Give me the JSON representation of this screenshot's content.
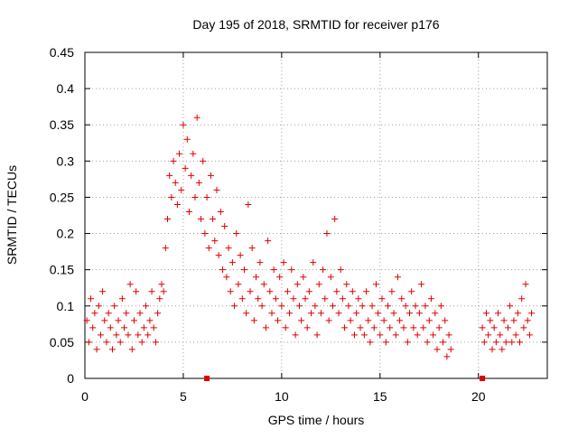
{
  "chart_data": {
    "type": "scatter",
    "title": "Day 195 of 2018, SRMTID for receiver p176",
    "xlabel": "GPS time / hours",
    "ylabel": "SRMTID / TECUs",
    "xlim": [
      0,
      23.5
    ],
    "ylim": [
      0,
      0.45
    ],
    "x_ticks": [
      0,
      5,
      10,
      15,
      20
    ],
    "y_ticks": [
      0,
      0.05,
      0.1,
      0.15,
      0.2,
      0.25,
      0.3,
      0.35,
      0.4,
      0.45
    ],
    "x_tick_labels": [
      "0",
      "5",
      "10",
      "15",
      "20"
    ],
    "y_tick_labels": [
      "0",
      "0.05",
      "0.1",
      "0.15",
      "0.2",
      "0.25",
      "0.3",
      "0.35",
      "0.4",
      "0.45"
    ],
    "grid": true,
    "marker": "plus",
    "color": "#e00000",
    "series": [
      {
        "name": "SRMTID",
        "points": [
          [
            0.1,
            0.08
          ],
          [
            0.2,
            0.05
          ],
          [
            0.3,
            0.11
          ],
          [
            0.4,
            0.07
          ],
          [
            0.5,
            0.09
          ],
          [
            0.6,
            0.04
          ],
          [
            0.7,
            0.1
          ],
          [
            0.8,
            0.06
          ],
          [
            0.9,
            0.12
          ],
          [
            1.0,
            0.08
          ],
          [
            1.1,
            0.05
          ],
          [
            1.2,
            0.09
          ],
          [
            1.3,
            0.07
          ],
          [
            1.4,
            0.04
          ],
          [
            1.5,
            0.1
          ],
          [
            1.6,
            0.06
          ],
          [
            1.7,
            0.08
          ],
          [
            1.8,
            0.05
          ],
          [
            1.9,
            0.11
          ],
          [
            2.0,
            0.07
          ],
          [
            2.1,
            0.09
          ],
          [
            2.2,
            0.06
          ],
          [
            2.3,
            0.13
          ],
          [
            2.4,
            0.04
          ],
          [
            2.5,
            0.08
          ],
          [
            2.6,
            0.12
          ],
          [
            2.7,
            0.06
          ],
          [
            2.8,
            0.09
          ],
          [
            2.9,
            0.05
          ],
          [
            3.0,
            0.07
          ],
          [
            3.1,
            0.1
          ],
          [
            3.2,
            0.06
          ],
          [
            3.3,
            0.08
          ],
          [
            3.4,
            0.12
          ],
          [
            3.5,
            0.07
          ],
          [
            3.6,
            0.05
          ],
          [
            3.7,
            0.09
          ],
          [
            3.8,
            0.11
          ],
          [
            3.9,
            0.13
          ],
          [
            4.0,
            0.12
          ],
          [
            4.1,
            0.18
          ],
          [
            4.2,
            0.22
          ],
          [
            4.3,
            0.28
          ],
          [
            4.4,
            0.25
          ],
          [
            4.5,
            0.3
          ],
          [
            4.6,
            0.27
          ],
          [
            4.7,
            0.24
          ],
          [
            4.8,
            0.31
          ],
          [
            4.9,
            0.26
          ],
          [
            5.0,
            0.35
          ],
          [
            5.1,
            0.29
          ],
          [
            5.2,
            0.33
          ],
          [
            5.3,
            0.23
          ],
          [
            5.4,
            0.28
          ],
          [
            5.5,
            0.31
          ],
          [
            5.6,
            0.25
          ],
          [
            5.7,
            0.36
          ],
          [
            5.8,
            0.27
          ],
          [
            5.9,
            0.22
          ],
          [
            6.0,
            0.3
          ],
          [
            6.1,
            0.2
          ],
          [
            6.2,
            0.25
          ],
          [
            6.3,
            0.18
          ],
          [
            6.4,
            0.28
          ],
          [
            6.5,
            0.22
          ],
          [
            6.6,
            0.19
          ],
          [
            6.7,
            0.26
          ],
          [
            6.8,
            0.17
          ],
          [
            6.9,
            0.23
          ],
          [
            7.0,
            0.15
          ],
          [
            7.1,
            0.21
          ],
          [
            7.2,
            0.14
          ],
          [
            7.3,
            0.18
          ],
          [
            7.4,
            0.12
          ],
          [
            7.5,
            0.16
          ],
          [
            7.6,
            0.1
          ],
          [
            7.7,
            0.2
          ],
          [
            7.8,
            0.13
          ],
          [
            7.9,
            0.17
          ],
          [
            8.0,
            0.11
          ],
          [
            8.1,
            0.15
          ],
          [
            8.2,
            0.09
          ],
          [
            8.3,
            0.24
          ],
          [
            8.4,
            0.12
          ],
          [
            8.5,
            0.18
          ],
          [
            8.6,
            0.08
          ],
          [
            8.7,
            0.14
          ],
          [
            8.8,
            0.11
          ],
          [
            8.9,
            0.16
          ],
          [
            9.0,
            0.1
          ],
          [
            9.1,
            0.13
          ],
          [
            9.2,
            0.07
          ],
          [
            9.3,
            0.19
          ],
          [
            9.4,
            0.12
          ],
          [
            9.5,
            0.09
          ],
          [
            9.6,
            0.15
          ],
          [
            9.7,
            0.11
          ],
          [
            9.8,
            0.08
          ],
          [
            9.9,
            0.14
          ],
          [
            10.0,
            0.1
          ],
          [
            10.1,
            0.16
          ],
          [
            10.2,
            0.07
          ],
          [
            10.3,
            0.12
          ],
          [
            10.4,
            0.09
          ],
          [
            10.5,
            0.15
          ],
          [
            10.6,
            0.11
          ],
          [
            10.7,
            0.06
          ],
          [
            10.8,
            0.13
          ],
          [
            10.9,
            0.1
          ],
          [
            11.0,
            0.08
          ],
          [
            11.1,
            0.14
          ],
          [
            11.2,
            0.11
          ],
          [
            11.3,
            0.07
          ],
          [
            11.4,
            0.12
          ],
          [
            11.5,
            0.09
          ],
          [
            11.6,
            0.16
          ],
          [
            11.7,
            0.1
          ],
          [
            11.8,
            0.06
          ],
          [
            11.9,
            0.13
          ],
          [
            12.0,
            0.09
          ],
          [
            12.1,
            0.15
          ],
          [
            12.2,
            0.11
          ],
          [
            12.3,
            0.2
          ],
          [
            12.4,
            0.08
          ],
          [
            12.5,
            0.14
          ],
          [
            12.6,
            0.1
          ],
          [
            12.7,
            0.22
          ],
          [
            12.8,
            0.12
          ],
          [
            12.9,
            0.09
          ],
          [
            13.0,
            0.15
          ],
          [
            13.1,
            0.11
          ],
          [
            13.2,
            0.07
          ],
          [
            13.3,
            0.13
          ],
          [
            13.4,
            0.1
          ],
          [
            13.5,
            0.08
          ],
          [
            13.6,
            0.12
          ],
          [
            13.7,
            0.06
          ],
          [
            13.8,
            0.09
          ],
          [
            13.9,
            0.11
          ],
          [
            14.0,
            0.07
          ],
          [
            14.1,
            0.1
          ],
          [
            14.2,
            0.06
          ],
          [
            14.3,
            0.12
          ],
          [
            14.4,
            0.08
          ],
          [
            14.5,
            0.05
          ],
          [
            14.6,
            0.1
          ],
          [
            14.7,
            0.07
          ],
          [
            14.8,
            0.13
          ],
          [
            14.9,
            0.09
          ],
          [
            15.0,
            0.06
          ],
          [
            15.1,
            0.11
          ],
          [
            15.2,
            0.08
          ],
          [
            15.3,
            0.05
          ],
          [
            15.4,
            0.1
          ],
          [
            15.5,
            0.07
          ],
          [
            15.6,
            0.12
          ],
          [
            15.7,
            0.09
          ],
          [
            15.8,
            0.06
          ],
          [
            15.9,
            0.14
          ],
          [
            16.0,
            0.08
          ],
          [
            16.1,
            0.11
          ],
          [
            16.2,
            0.07
          ],
          [
            16.3,
            0.1
          ],
          [
            16.4,
            0.05
          ],
          [
            16.5,
            0.09
          ],
          [
            16.6,
            0.12
          ],
          [
            16.7,
            0.07
          ],
          [
            16.8,
            0.1
          ],
          [
            16.9,
            0.06
          ],
          [
            17.0,
            0.09
          ],
          [
            17.1,
            0.13
          ],
          [
            17.2,
            0.07
          ],
          [
            17.3,
            0.1
          ],
          [
            17.4,
            0.05
          ],
          [
            17.5,
            0.08
          ],
          [
            17.6,
            0.11
          ],
          [
            17.7,
            0.06
          ],
          [
            17.8,
            0.09
          ],
          [
            17.9,
            0.04
          ],
          [
            18.0,
            0.07
          ],
          [
            18.1,
            0.1
          ],
          [
            18.2,
            0.05
          ],
          [
            18.3,
            0.08
          ],
          [
            18.4,
            0.03
          ],
          [
            18.5,
            0.06
          ],
          [
            18.6,
            0.04
          ],
          [
            20.2,
            0.07
          ],
          [
            20.3,
            0.05
          ],
          [
            20.4,
            0.09
          ],
          [
            20.5,
            0.06
          ],
          [
            20.6,
            0.08
          ],
          [
            20.7,
            0.04
          ],
          [
            20.8,
            0.07
          ],
          [
            20.9,
            0.05
          ],
          [
            21.0,
            0.09
          ],
          [
            21.1,
            0.06
          ],
          [
            21.2,
            0.04
          ],
          [
            21.3,
            0.08
          ],
          [
            21.4,
            0.05
          ],
          [
            21.5,
            0.07
          ],
          [
            21.6,
            0.1
          ],
          [
            21.7,
            0.05
          ],
          [
            21.8,
            0.08
          ],
          [
            21.9,
            0.06
          ],
          [
            22.0,
            0.09
          ],
          [
            22.1,
            0.05
          ],
          [
            22.2,
            0.11
          ],
          [
            22.3,
            0.07
          ],
          [
            22.4,
            0.13
          ],
          [
            22.5,
            0.08
          ],
          [
            22.6,
            0.06
          ],
          [
            22.7,
            0.09
          ]
        ]
      }
    ],
    "axis_markers": [
      [
        6.2,
        0
      ],
      [
        20.2,
        0
      ]
    ]
  }
}
